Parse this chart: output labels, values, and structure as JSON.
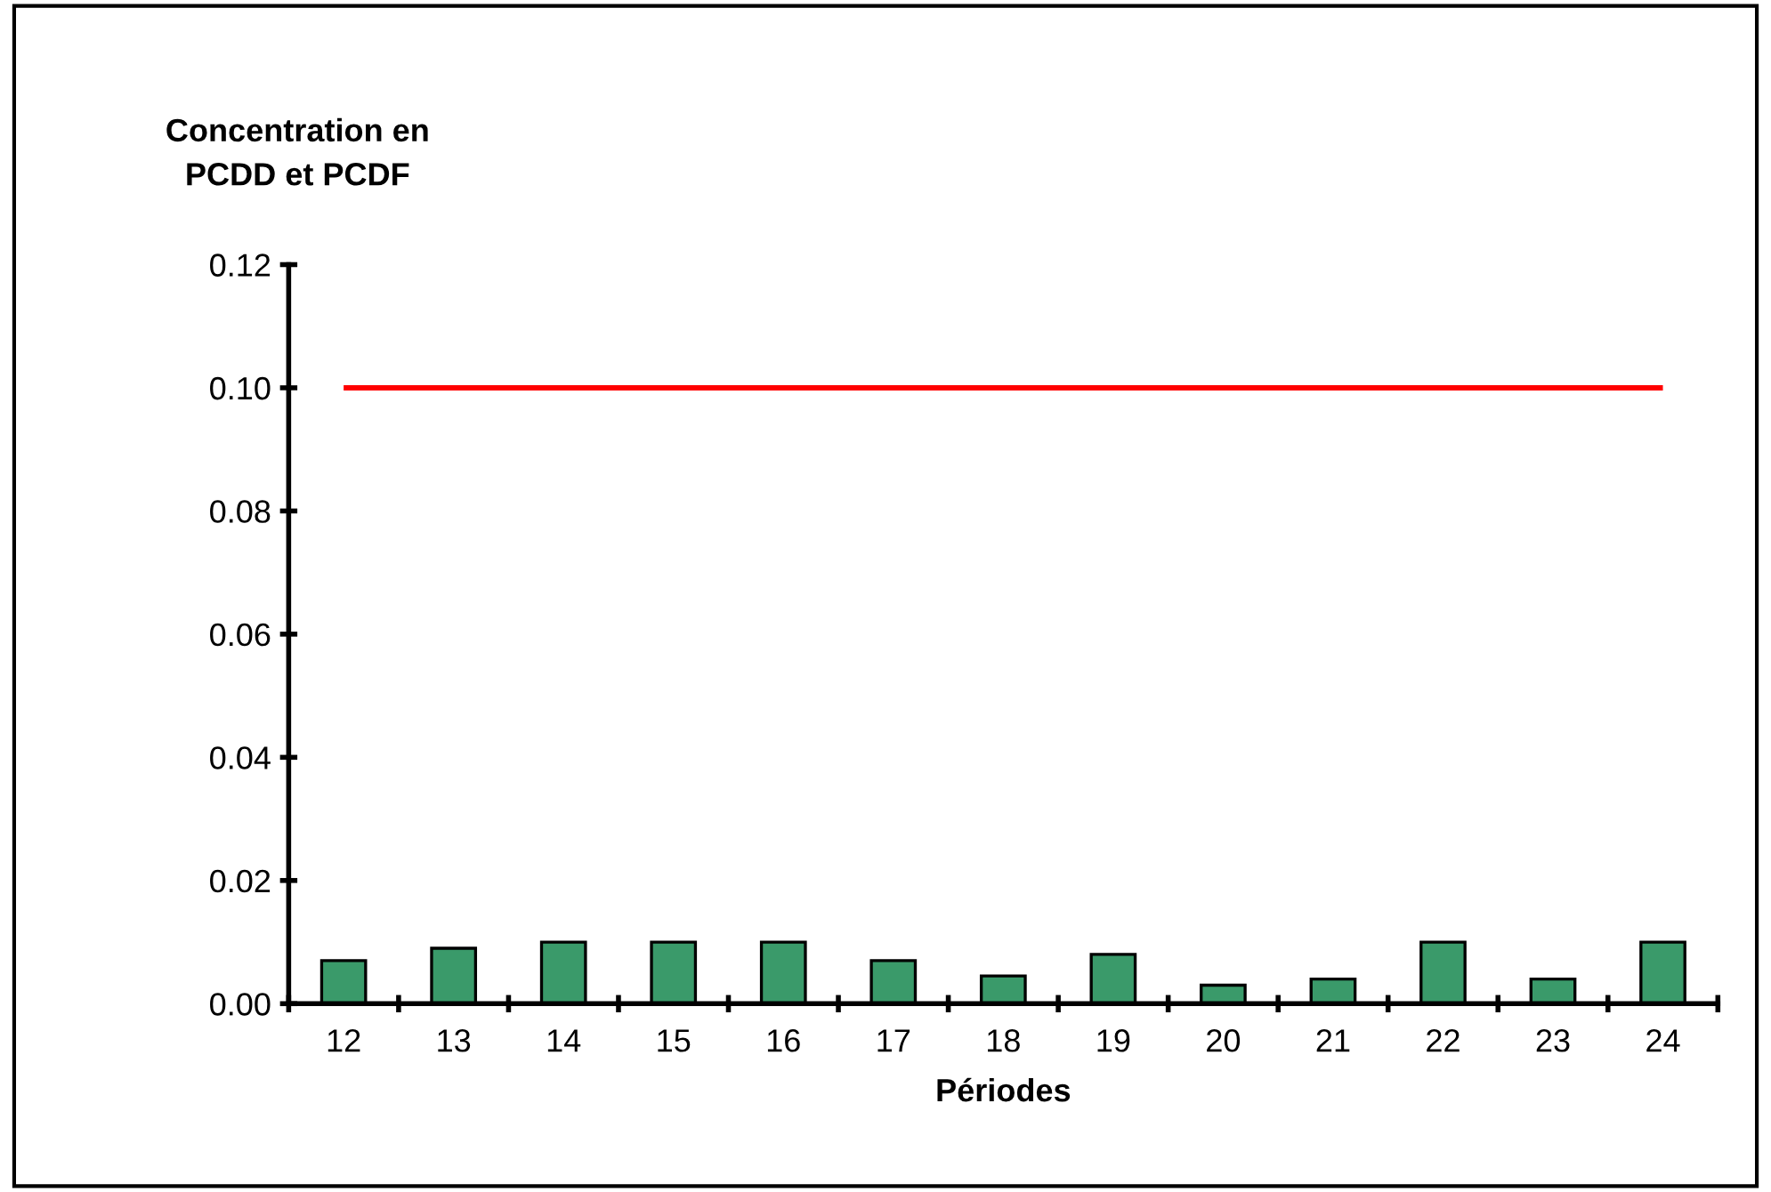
{
  "chart_data": {
    "type": "bar",
    "ylabel": "Concentration en\nPCDD et PCDF",
    "xlabel": "Périodes",
    "categories": [
      "12",
      "13",
      "14",
      "15",
      "16",
      "17",
      "18",
      "19",
      "20",
      "21",
      "22",
      "23",
      "24"
    ],
    "values": [
      0.007,
      0.009,
      0.01,
      0.01,
      0.01,
      0.007,
      0.0045,
      0.008,
      0.003,
      0.004,
      0.01,
      0.004,
      0.01
    ],
    "color": "#3a9a6a",
    "ylim": [
      0,
      0.12
    ],
    "yticks": [
      {
        "value": 0,
        "label": "0.00"
      },
      {
        "value": 0.02,
        "label": "0.02"
      },
      {
        "value": 0.04,
        "label": "0.04"
      },
      {
        "value": 0.06,
        "label": "0.06"
      },
      {
        "value": 0.08,
        "label": "0.08"
      },
      {
        "value": 0.1,
        "label": "0.10"
      },
      {
        "value": 0.12,
        "label": "0.12"
      }
    ],
    "ref_lines": [
      {
        "axis": "y",
        "value": 0.1,
        "color": "#ff0000",
        "line_style": "solid"
      }
    ],
    "grid": false,
    "legend": false
  }
}
